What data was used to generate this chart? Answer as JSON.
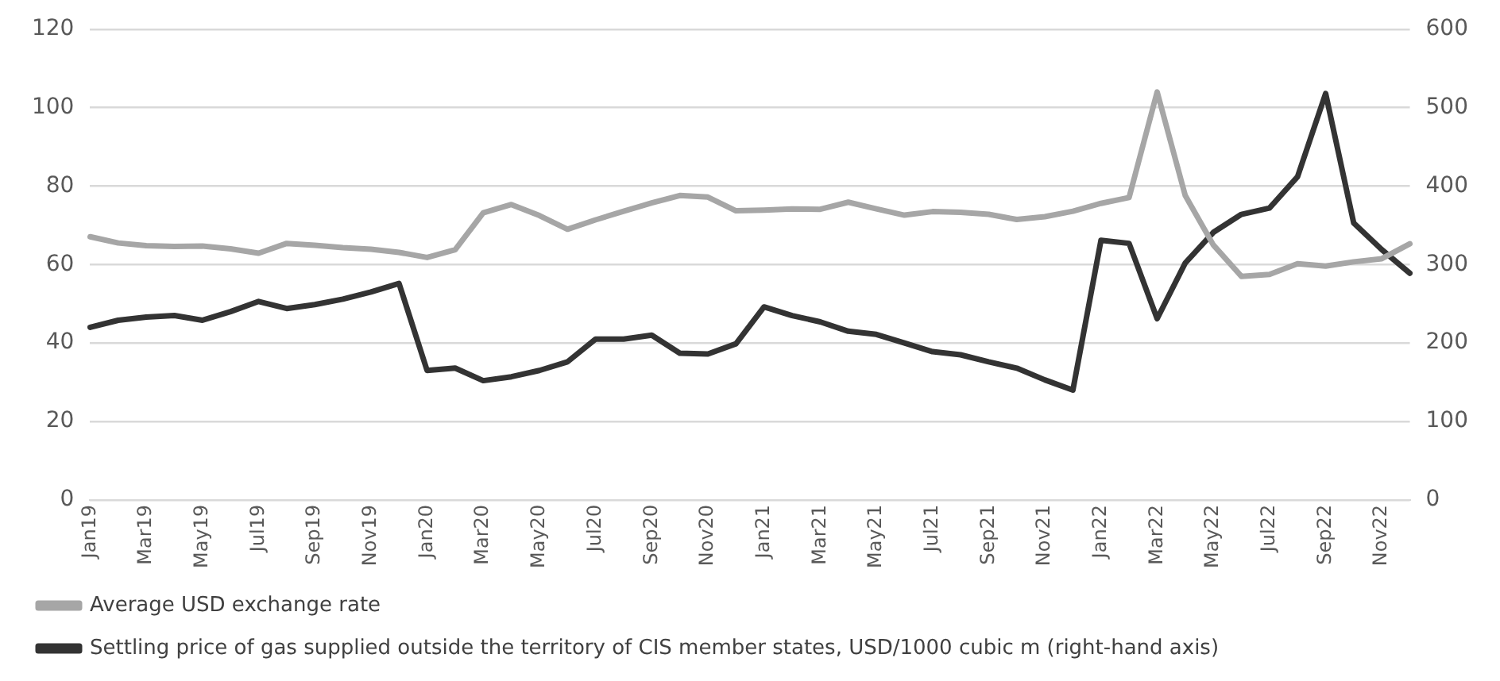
{
  "chart_data": {
    "type": "line",
    "categories": [
      "Jan19",
      null,
      "Mar19",
      null,
      "May19",
      null,
      "Jul19",
      null,
      "Sep19",
      null,
      "Nov19",
      null,
      "Jan20",
      null,
      "Mar20",
      null,
      "May20",
      null,
      "Jul20",
      null,
      "Sep20",
      null,
      "Nov20",
      null,
      "Jan21",
      null,
      "Mar21",
      null,
      "May21",
      null,
      "Jul21",
      null,
      "Sep21",
      null,
      "Nov21",
      null,
      "Jan22",
      null,
      "Mar22",
      null,
      "May22",
      null,
      "Jul22",
      null,
      "Sep22",
      null,
      "Nov22",
      null
    ],
    "series": [
      {
        "name": "Average USD exchange rate",
        "color": "#a6a6a6",
        "values": [
          67.1,
          65.5,
          64.8,
          64.6,
          64.7,
          64.0,
          62.9,
          65.4,
          64.9,
          64.3,
          63.9,
          63.1,
          61.8,
          63.8,
          73.2,
          75.3,
          72.5,
          69.0,
          71.4,
          73.6,
          75.7,
          77.6,
          77.2,
          73.7,
          73.9,
          74.2,
          74.1,
          75.9,
          74.2,
          72.6,
          73.5,
          73.3,
          72.8,
          71.5,
          72.2,
          73.6,
          75.6,
          77.1,
          104,
          77.6,
          65,
          57.0,
          57.5,
          60.2,
          59.6,
          60.7,
          61.5,
          65.3
        ]
      },
      {
        "name": "Settling price of gas supplied outside the territory of CIS member states, USD/1000 cubic m (right-hand axis)",
        "color": "#333333",
        "axis": "y2",
        "values": [
          220,
          229,
          233,
          235,
          229,
          240,
          253,
          244,
          249,
          256,
          265,
          276,
          165,
          168,
          152,
          157,
          165,
          176,
          205,
          205,
          210,
          187,
          186,
          199,
          246,
          235,
          227,
          215,
          211,
          200,
          189,
          185,
          176,
          168,
          153,
          140,
          331,
          327,
          231,
          302,
          341,
          364,
          372,
          412,
          518,
          353,
          319,
          289
        ]
      }
    ],
    "ylim": [
      0,
      120
    ],
    "yticks": [
      0,
      20,
      40,
      60,
      80,
      100,
      120
    ],
    "y2lim": [
      0,
      600
    ],
    "y2ticks": [
      0,
      100,
      200,
      300,
      400,
      500,
      600
    ],
    "grid": "y",
    "legend": "bottom",
    "marker": "none",
    "line_style": "solid"
  }
}
